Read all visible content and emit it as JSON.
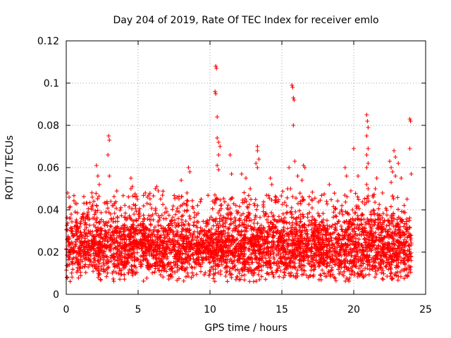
{
  "chart_data": {
    "type": "scatter",
    "title": "Day 204 of 2019, Rate Of TEC Index for receiver emlo",
    "xlabel": "GPS time / hours",
    "ylabel": "ROTI / TECUs",
    "xlim": [
      0,
      25
    ],
    "ylim": [
      0,
      0.12
    ],
    "xticks": [
      0,
      5,
      10,
      15,
      20,
      25
    ],
    "xtick_labels": [
      "0",
      "5",
      "10",
      "15",
      "20",
      "25"
    ],
    "yticks": [
      0,
      0.02,
      0.04,
      0.06,
      0.08,
      0.1,
      0.12
    ],
    "ytick_labels": [
      "0",
      "0.02",
      "0.04",
      "0.06",
      "0.08",
      "0.1",
      "0.12"
    ],
    "grid": true,
    "marker": "+",
    "series_color": "#ff0000",
    "time_range": [
      0,
      24
    ],
    "band": {
      "low": 0.006,
      "mid": 0.016,
      "high": 0.035
    },
    "peaks": [
      {
        "x": 0.1,
        "y": 0.048
      },
      {
        "x": 0.2,
        "y": 0.046
      },
      {
        "x": 2.1,
        "y": 0.061
      },
      {
        "x": 2.2,
        "y": 0.056
      },
      {
        "x": 2.3,
        "y": 0.052
      },
      {
        "x": 2.95,
        "y": 0.075
      },
      {
        "x": 3.0,
        "y": 0.073
      },
      {
        "x": 2.9,
        "y": 0.066
      },
      {
        "x": 3.0,
        "y": 0.056
      },
      {
        "x": 3.1,
        "y": 0.044
      },
      {
        "x": 3.2,
        "y": 0.042
      },
      {
        "x": 4.5,
        "y": 0.055
      },
      {
        "x": 4.6,
        "y": 0.051
      },
      {
        "x": 4.5,
        "y": 0.05
      },
      {
        "x": 5.5,
        "y": 0.048
      },
      {
        "x": 6.2,
        "y": 0.05
      },
      {
        "x": 6.3,
        "y": 0.051
      },
      {
        "x": 6.4,
        "y": 0.049
      },
      {
        "x": 8.0,
        "y": 0.054
      },
      {
        "x": 8.5,
        "y": 0.06
      },
      {
        "x": 8.6,
        "y": 0.058
      },
      {
        "x": 8.4,
        "y": 0.048
      },
      {
        "x": 10.4,
        "y": 0.108
      },
      {
        "x": 10.45,
        "y": 0.107
      },
      {
        "x": 10.35,
        "y": 0.096
      },
      {
        "x": 10.4,
        "y": 0.095
      },
      {
        "x": 10.5,
        "y": 0.084
      },
      {
        "x": 10.5,
        "y": 0.074
      },
      {
        "x": 10.6,
        "y": 0.072
      },
      {
        "x": 10.7,
        "y": 0.07
      },
      {
        "x": 10.6,
        "y": 0.066
      },
      {
        "x": 10.5,
        "y": 0.061
      },
      {
        "x": 10.6,
        "y": 0.059
      },
      {
        "x": 11.4,
        "y": 0.066
      },
      {
        "x": 11.5,
        "y": 0.057
      },
      {
        "x": 12.2,
        "y": 0.057
      },
      {
        "x": 12.5,
        "y": 0.055
      },
      {
        "x": 12.8,
        "y": 0.05
      },
      {
        "x": 13.3,
        "y": 0.07
      },
      {
        "x": 13.3,
        "y": 0.068
      },
      {
        "x": 13.4,
        "y": 0.064
      },
      {
        "x": 13.2,
        "y": 0.062
      },
      {
        "x": 13.3,
        "y": 0.06
      },
      {
        "x": 14.2,
        "y": 0.055
      },
      {
        "x": 14.3,
        "y": 0.052
      },
      {
        "x": 15.5,
        "y": 0.06
      },
      {
        "x": 15.4,
        "y": 0.05
      },
      {
        "x": 15.6,
        "y": 0.05
      },
      {
        "x": 15.7,
        "y": 0.099
      },
      {
        "x": 15.75,
        "y": 0.098
      },
      {
        "x": 15.8,
        "y": 0.093
      },
      {
        "x": 15.85,
        "y": 0.092
      },
      {
        "x": 15.8,
        "y": 0.08
      },
      {
        "x": 15.9,
        "y": 0.063
      },
      {
        "x": 16.1,
        "y": 0.056
      },
      {
        "x": 16.4,
        "y": 0.054
      },
      {
        "x": 16.5,
        "y": 0.061
      },
      {
        "x": 16.6,
        "y": 0.06
      },
      {
        "x": 16.5,
        "y": 0.045
      },
      {
        "x": 18.3,
        "y": 0.052
      },
      {
        "x": 19.4,
        "y": 0.06
      },
      {
        "x": 19.5,
        "y": 0.056
      },
      {
        "x": 19.8,
        "y": 0.049
      },
      {
        "x": 20.0,
        "y": 0.069
      },
      {
        "x": 20.3,
        "y": 0.056
      },
      {
        "x": 20.9,
        "y": 0.085
      },
      {
        "x": 20.95,
        "y": 0.082
      },
      {
        "x": 21.0,
        "y": 0.079
      },
      {
        "x": 20.9,
        "y": 0.075
      },
      {
        "x": 21.0,
        "y": 0.069
      },
      {
        "x": 20.9,
        "y": 0.066
      },
      {
        "x": 21.0,
        "y": 0.062
      },
      {
        "x": 20.9,
        "y": 0.06
      },
      {
        "x": 20.9,
        "y": 0.052
      },
      {
        "x": 21.0,
        "y": 0.05
      },
      {
        "x": 21.5,
        "y": 0.05
      },
      {
        "x": 21.6,
        "y": 0.055
      },
      {
        "x": 22.0,
        "y": 0.048
      },
      {
        "x": 22.5,
        "y": 0.063
      },
      {
        "x": 22.6,
        "y": 0.06
      },
      {
        "x": 22.8,
        "y": 0.068
      },
      {
        "x": 22.9,
        "y": 0.065
      },
      {
        "x": 22.7,
        "y": 0.058
      },
      {
        "x": 22.6,
        "y": 0.053
      },
      {
        "x": 22.9,
        "y": 0.056
      },
      {
        "x": 23.1,
        "y": 0.062
      },
      {
        "x": 23.3,
        "y": 0.055
      },
      {
        "x": 23.9,
        "y": 0.083
      },
      {
        "x": 23.95,
        "y": 0.082
      },
      {
        "x": 23.9,
        "y": 0.069
      },
      {
        "x": 24.0,
        "y": 0.057
      }
    ]
  }
}
